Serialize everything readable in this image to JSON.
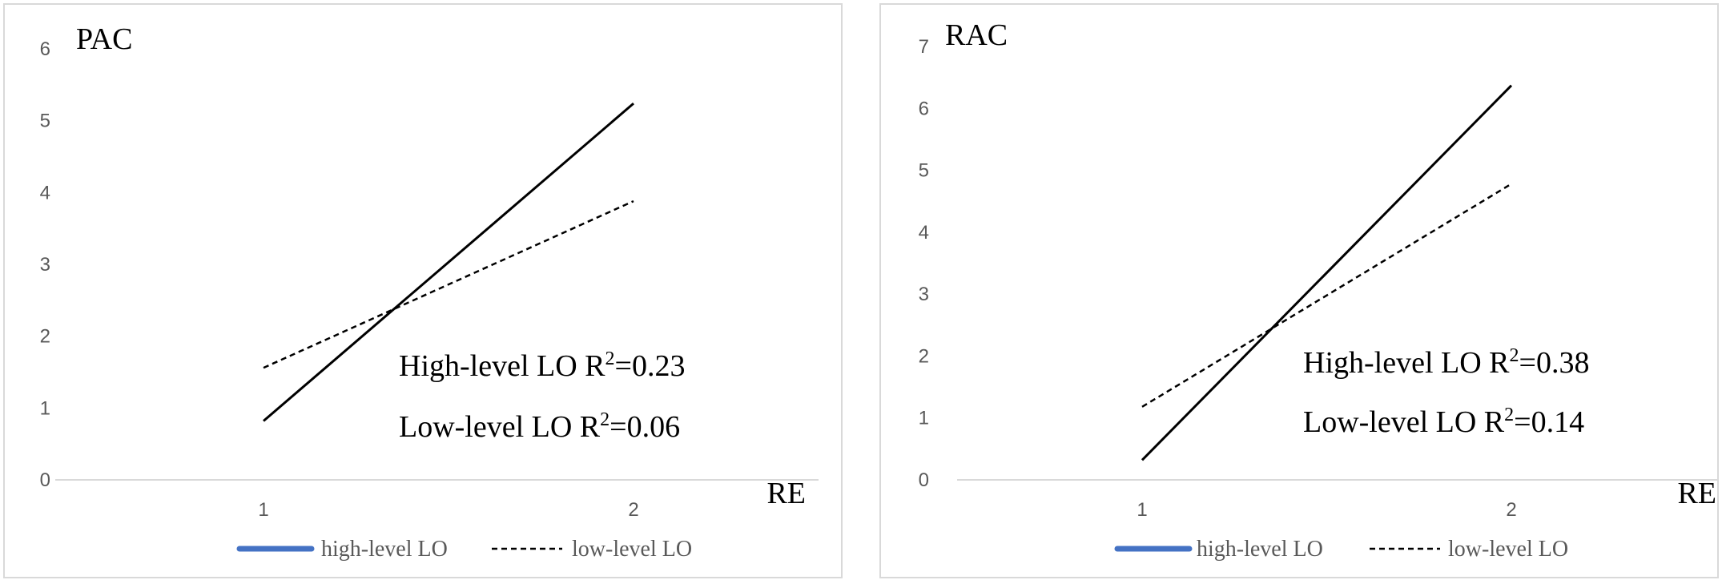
{
  "chart_data": [
    {
      "type": "line",
      "ylabel": "PAC",
      "xlabel": "RE",
      "categories": [
        "1",
        "2"
      ],
      "y_ticks": [
        "0",
        "1",
        "2",
        "3",
        "4",
        "5",
        "6"
      ],
      "ylim": [
        0,
        6
      ],
      "series": [
        {
          "name": "high-level LO",
          "values": [
            0.82,
            5.24
          ],
          "style": "solid"
        },
        {
          "name": "low-level LO",
          "values": [
            1.56,
            3.88
          ],
          "style": "dashed"
        }
      ],
      "annotations": [
        {
          "prefix": "High-level LO R",
          "sup": "2",
          "suffix": "=0.23"
        },
        {
          "prefix": "Low-level LO R",
          "sup": "2",
          "suffix": "=0.06"
        }
      ],
      "legend": {
        "position": "bottom"
      }
    },
    {
      "type": "line",
      "ylabel": "RAC",
      "xlabel": "RE",
      "categories": [
        "1",
        "2"
      ],
      "y_ticks": [
        "0",
        "1",
        "2",
        "3",
        "4",
        "5",
        "6",
        "7"
      ],
      "ylim": [
        0,
        7
      ],
      "series": [
        {
          "name": "high-level LO",
          "values": [
            0.32,
            6.37
          ],
          "style": "solid"
        },
        {
          "name": "low-level LO",
          "values": [
            1.18,
            4.78
          ],
          "style": "dashed"
        }
      ],
      "annotations": [
        {
          "prefix": "High-level LO R",
          "sup": "2",
          "suffix": "=0.38"
        },
        {
          "prefix": "Low-level LO R",
          "sup": "2",
          "suffix": "=0.14"
        }
      ],
      "legend": {
        "position": "bottom"
      }
    }
  ],
  "colors": {
    "legend_high": "#4472c4",
    "line": "#000000",
    "axis": "#d9d9d9",
    "tick": "#595959"
  }
}
